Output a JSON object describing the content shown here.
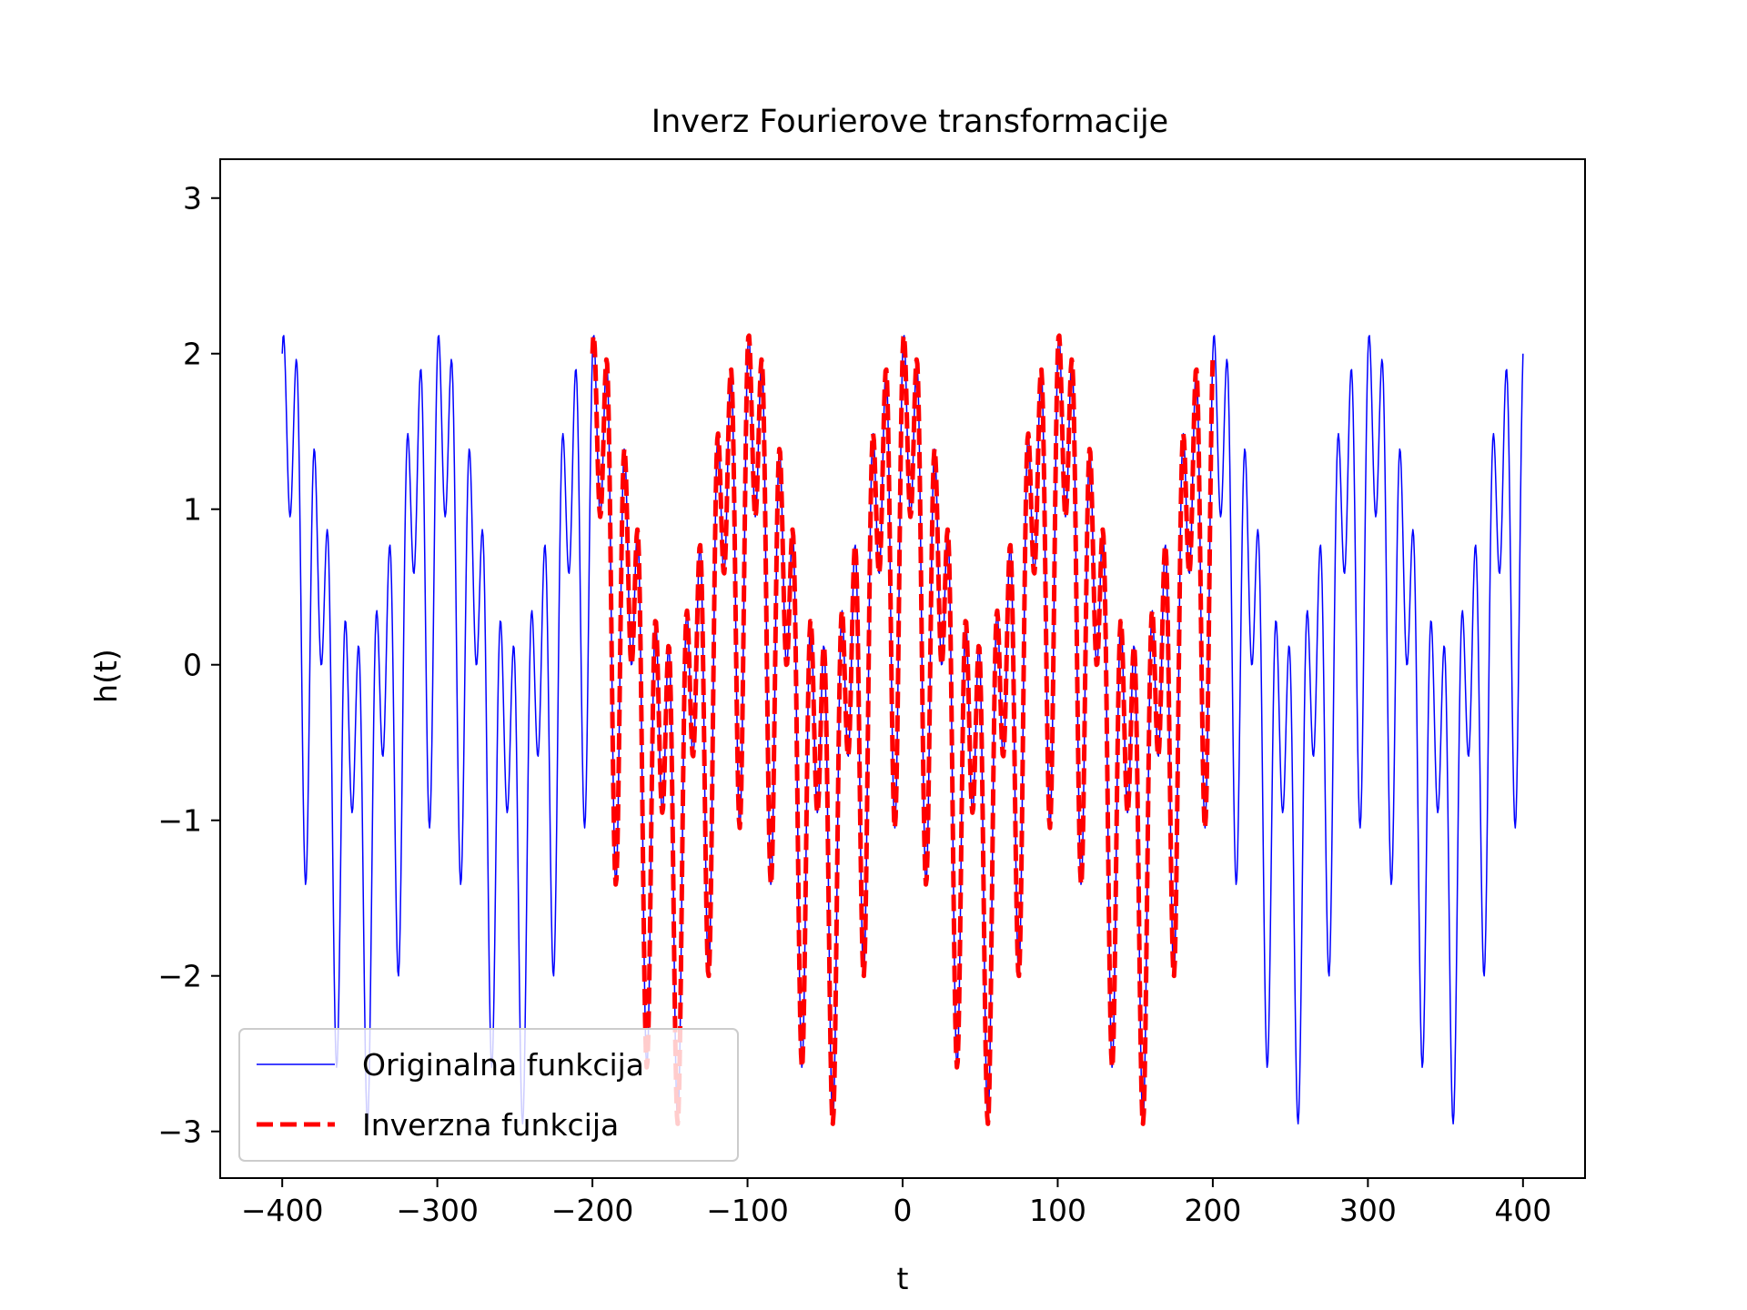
{
  "chart_data": {
    "type": "line",
    "title": "Inverz Fourierove transformacije",
    "xlabel": "t",
    "ylabel": "h(t)",
    "xlim": [
      -440,
      440
    ],
    "ylim": [
      -3.3,
      3.25
    ],
    "x_ticks": [
      -400,
      -300,
      -200,
      -100,
      0,
      100,
      200,
      300,
      400
    ],
    "x_tick_labels": [
      "−400",
      "−300",
      "−200",
      "−100",
      "0",
      "100",
      "200",
      "300",
      "400"
    ],
    "y_ticks": [
      -3,
      -2,
      -1,
      0,
      1,
      2,
      3
    ],
    "y_tick_labels": [
      "−3",
      "−2",
      "−1",
      "0",
      "1",
      "2",
      "3"
    ],
    "grid": false,
    "legend_placement": "lower-left",
    "series": [
      {
        "name": "Originalna funkcija",
        "color": "#0000ff",
        "style": "solid",
        "x_range": [
          -400,
          400
        ],
        "formula": "h(t) = cos(2π·0.01·t) + sin(2π·0.05·t) + cos(2π·0.1·t)",
        "components": [
          {
            "fn": "cos",
            "amplitude": 1,
            "frequency": 0.01
          },
          {
            "fn": "sin",
            "amplitude": 1,
            "frequency": 0.05
          },
          {
            "fn": "cos",
            "amplitude": 1,
            "frequency": 0.1
          }
        ]
      },
      {
        "name": "Inverzna funkcija",
        "color": "#ff0000",
        "style": "dashed",
        "x_range": [
          -200,
          200
        ],
        "formula": "same as Originalna funkcija on [-200, 200]"
      }
    ]
  }
}
